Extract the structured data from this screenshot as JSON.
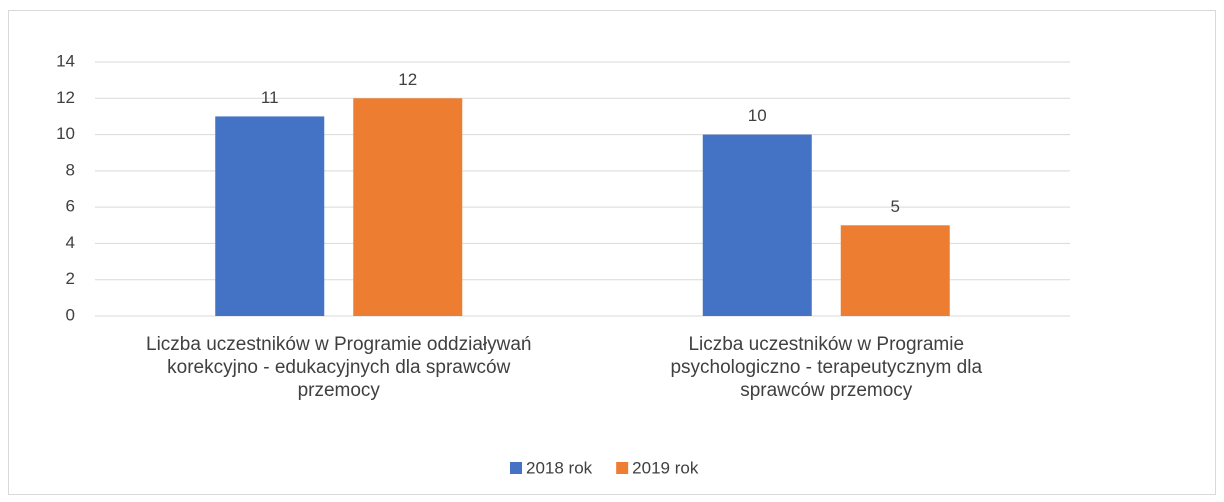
{
  "chart_data": {
    "type": "bar",
    "categories": [
      "Liczba uczestników w Programie oddziaływań korekcyjno - edukacyjnych dla sprawców przemocy",
      "Liczba uczestników w Programie psychologiczno - terapeutycznym dla sprawców przemocy"
    ],
    "series": [
      {
        "name": "2018 rok",
        "color": "#4472c4",
        "values": [
          11,
          10
        ]
      },
      {
        "name": "2019 rok",
        "color": "#ed7d31",
        "values": [
          12,
          5
        ]
      }
    ],
    "ylim": [
      0,
      14
    ],
    "yticks": [
      0,
      2,
      4,
      6,
      8,
      10,
      12,
      14
    ],
    "grid": true,
    "legend": "bottom"
  }
}
